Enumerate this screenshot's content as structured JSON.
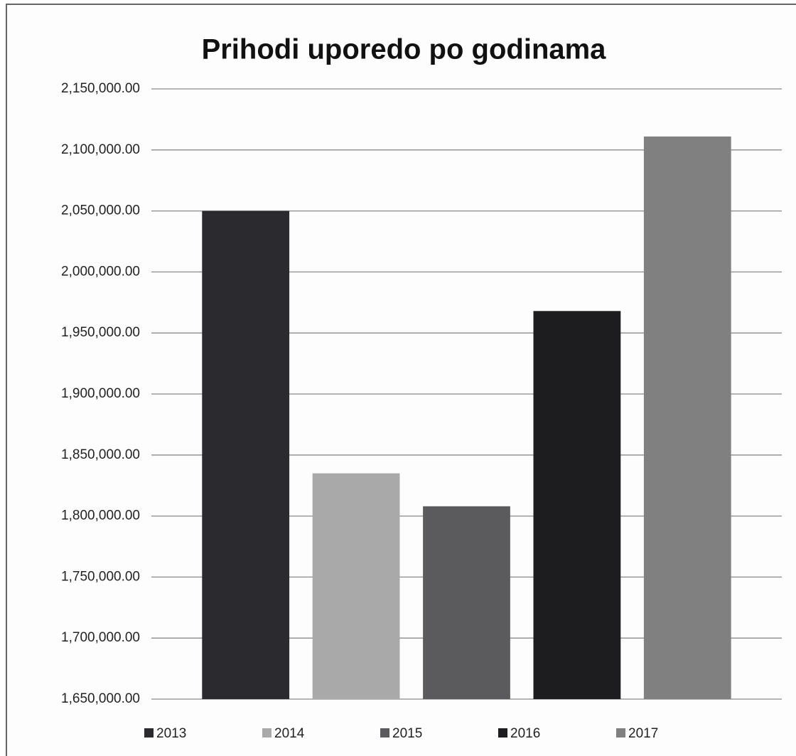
{
  "chart_data": {
    "type": "bar",
    "title": "Prihodi uporedo po godinama",
    "categories": [
      null
    ],
    "series": [
      {
        "name": "2013",
        "color": "#2b2b2f",
        "values": [
          2050000
        ]
      },
      {
        "name": "2014",
        "color": "#a9a9a9",
        "values": [
          1835000
        ]
      },
      {
        "name": "2015",
        "color": "#5b5b5d",
        "values": [
          1808000
        ]
      },
      {
        "name": "2016",
        "color": "#1d1d20",
        "values": [
          1968000
        ]
      },
      {
        "name": "2017",
        "color": "#808080",
        "values": [
          2111000
        ]
      }
    ],
    "ylim": [
      1650000,
      2150000
    ],
    "yticks": [
      {
        "value": 1650000,
        "label": "1,650,000.00"
      },
      {
        "value": 1700000,
        "label": "1,700,000.00"
      },
      {
        "value": 1750000,
        "label": "1,750,000.00"
      },
      {
        "value": 1800000,
        "label": "1,800,000.00"
      },
      {
        "value": 1850000,
        "label": "1,850,000.00"
      },
      {
        "value": 1900000,
        "label": "1,900,000.00"
      },
      {
        "value": 1950000,
        "label": "1,950,000.00"
      },
      {
        "value": 2000000,
        "label": "2,000,000.00"
      },
      {
        "value": 2050000,
        "label": "2,050,000.00"
      },
      {
        "value": 2100000,
        "label": "2,100,000.00"
      },
      {
        "value": 2150000,
        "label": "2,150,000.00"
      }
    ],
    "grid": true,
    "legend": "bottom"
  }
}
